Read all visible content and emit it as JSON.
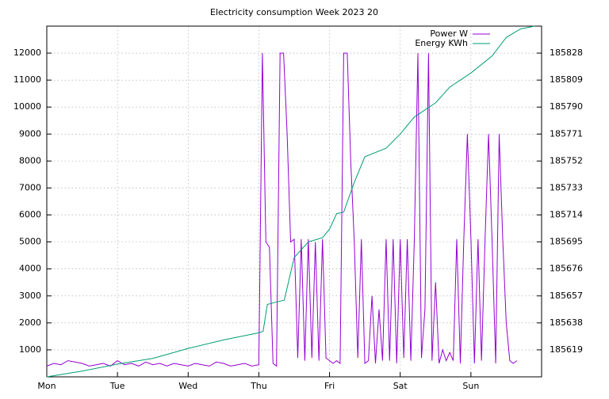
{
  "chart_data": {
    "type": "line",
    "title": "Electricity consumption Week 2023 20",
    "xlim": [
      0,
      7
    ],
    "xticks": [
      {
        "value": 0,
        "label": "Mon"
      },
      {
        "value": 1,
        "label": "Tue"
      },
      {
        "value": 2,
        "label": "Wed"
      },
      {
        "value": 3,
        "label": "Thu"
      },
      {
        "value": 4,
        "label": "Fri"
      },
      {
        "value": 5,
        "label": "Sat"
      },
      {
        "value": 6,
        "label": "Sun"
      }
    ],
    "ylim": [
      0,
      13000
    ],
    "yticks": [
      1000,
      2000,
      3000,
      4000,
      5000,
      6000,
      7000,
      8000,
      9000,
      10000,
      11000,
      12000
    ],
    "y2lim": [
      185600,
      185847
    ],
    "y2ticks": [
      185619,
      185638,
      185657,
      185676,
      185695,
      185714,
      185733,
      185752,
      185771,
      185790,
      185809,
      185828
    ],
    "grid": true,
    "legend": "top-right",
    "series": [
      {
        "name": "Power W",
        "color": "#9400d3",
        "axis": "y",
        "x": [
          0,
          0.1,
          0.2,
          0.3,
          0.4,
          0.5,
          0.6,
          0.7,
          0.8,
          0.9,
          1.0,
          1.1,
          1.2,
          1.3,
          1.4,
          1.5,
          1.6,
          1.7,
          1.8,
          1.9,
          2.0,
          2.1,
          2.2,
          2.3,
          2.4,
          2.5,
          2.6,
          2.7,
          2.8,
          2.9,
          3.0,
          3.05,
          3.1,
          3.15,
          3.2,
          3.25,
          3.3,
          3.35,
          3.4,
          3.45,
          3.5,
          3.55,
          3.6,
          3.65,
          3.7,
          3.75,
          3.8,
          3.85,
          3.9,
          3.95,
          4.0,
          4.05,
          4.1,
          4.15,
          4.2,
          4.25,
          4.3,
          4.35,
          4.4,
          4.45,
          4.5,
          4.55,
          4.6,
          4.65,
          4.7,
          4.75,
          4.8,
          4.85,
          4.9,
          4.95,
          5.0,
          5.05,
          5.1,
          5.15,
          5.2,
          5.25,
          5.3,
          5.35,
          5.4,
          5.45,
          5.5,
          5.55,
          5.6,
          5.65,
          5.7,
          5.75,
          5.8,
          5.85,
          5.9,
          5.95,
          6.0,
          6.05,
          6.1,
          6.15,
          6.2,
          6.25,
          6.3,
          6.35,
          6.4,
          6.45,
          6.5,
          6.55,
          6.6,
          6.65
        ],
        "values": [
          400,
          500,
          450,
          600,
          550,
          500,
          400,
          450,
          500,
          400,
          600,
          450,
          500,
          400,
          550,
          450,
          500,
          400,
          500,
          450,
          400,
          500,
          450,
          400,
          550,
          500,
          400,
          450,
          500,
          400,
          450,
          12000,
          5000,
          4800,
          500,
          400,
          12000,
          12000,
          9000,
          5000,
          5100,
          700,
          5100,
          600,
          5100,
          700,
          5000,
          600,
          5100,
          700,
          600,
          500,
          600,
          500,
          12000,
          12000,
          8000,
          5000,
          700,
          5100,
          500,
          600,
          3000,
          500,
          2500,
          600,
          5100,
          600,
          5100,
          500,
          5100,
          700,
          5100,
          600,
          5100,
          12000,
          700,
          2500,
          12000,
          600,
          3500,
          500,
          1000,
          600,
          900,
          600,
          5100,
          500,
          5100,
          9000,
          5100,
          500,
          5100,
          600,
          5100,
          9000,
          5000,
          500,
          9000,
          5100,
          2000,
          600,
          500,
          600
        ]
      },
      {
        "name": "Energy KWh",
        "color": "#009e73",
        "axis": "y2",
        "x": [
          0,
          0.5,
          1.0,
          1.5,
          2.0,
          2.5,
          3.0,
          3.06,
          3.12,
          3.2,
          3.36,
          3.5,
          3.7,
          3.9,
          4.0,
          4.1,
          4.2,
          4.35,
          4.5,
          4.8,
          5.0,
          5.2,
          5.5,
          5.7,
          6.0,
          6.3,
          6.5,
          6.7,
          6.9
        ],
        "values": [
          185600,
          185604,
          185609,
          185613,
          185620,
          185626,
          185631,
          185632,
          185651,
          185652,
          185654,
          185684,
          185695,
          185698,
          185704,
          185715,
          185716,
          185737,
          185755,
          185761,
          185771,
          185783,
          185793,
          185804,
          185814,
          185826,
          185839,
          185845,
          185847
        ]
      }
    ]
  }
}
